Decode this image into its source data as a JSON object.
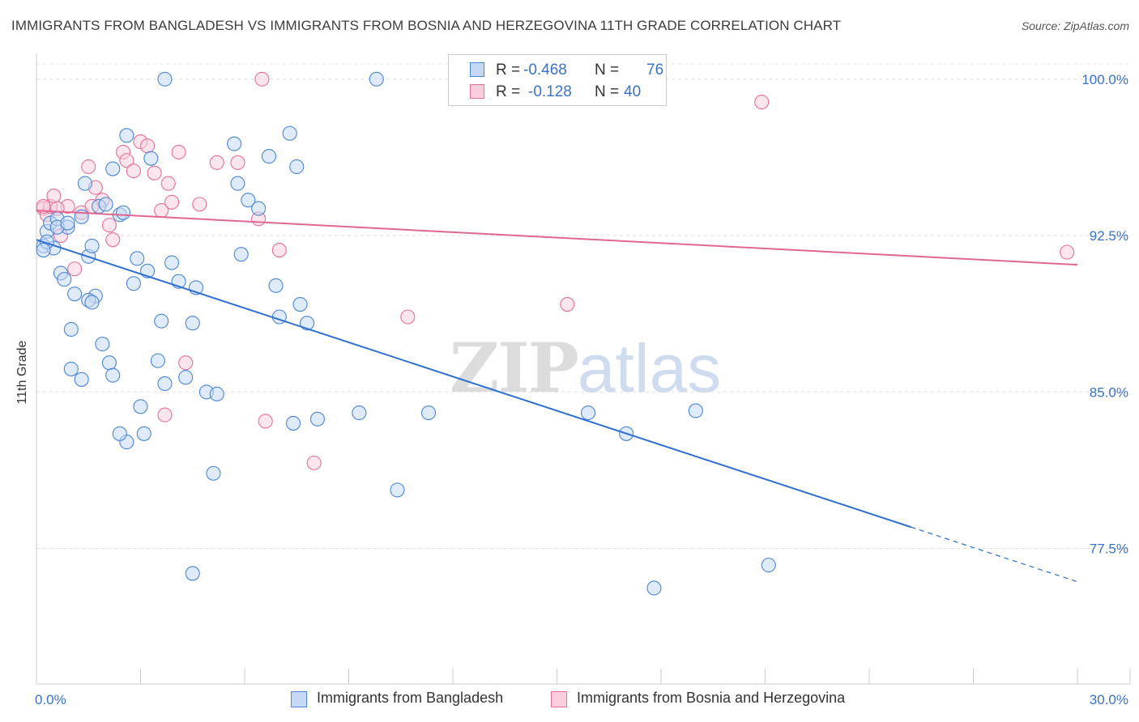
{
  "title": "IMMIGRANTS FROM BANGLADESH VS IMMIGRANTS FROM BOSNIA AND HERZEGOVINA 11TH GRADE CORRELATION CHART",
  "source": "Source: ZipAtlas.com",
  "watermark": {
    "zip": "ZIP",
    "atlas": "atlas"
  },
  "legend_top": {
    "rows": [
      {
        "r_label": "R =",
        "r_value": "-0.468",
        "n_label": "N =",
        "n_value": "76"
      },
      {
        "r_label": "R =",
        "r_value": "-0.128",
        "n_label": "N =",
        "n_value": "40"
      }
    ]
  },
  "chart_data": {
    "type": "scatter",
    "title": "IMMIGRANTS FROM BANGLADESH VS IMMIGRANTS FROM BOSNIA AND HERZEGOVINA 11TH GRADE CORRELATION CHART",
    "xlabel": "",
    "ylabel": "11th Grade",
    "xlim": [
      0,
      30
    ],
    "ylim": [
      71,
      101
    ],
    "x_tick_labels": [
      "0.0%",
      "30.0%"
    ],
    "y_tick_labels": [
      "100.0%",
      "92.5%",
      "85.0%",
      "77.5%"
    ],
    "y_ticks": [
      100,
      92.5,
      85,
      77.5
    ],
    "colors": {
      "bangladesh": "#4a86d8",
      "bosnia": "#e6709a",
      "bangladesh_fill": "#c5d9f5",
      "bosnia_fill": "#f9cfdd"
    },
    "series": [
      {
        "name": "Immigrants from Bangladesh",
        "r": -0.468,
        "n": 76,
        "trend": {
          "x0": 0,
          "y0": 92.3,
          "x1": 30,
          "y1": 75.9,
          "solid_until_x": 25.2
        },
        "points": [
          [
            0.2,
            92.0
          ],
          [
            0.3,
            92.7
          ],
          [
            0.4,
            93.1
          ],
          [
            0.5,
            91.9
          ],
          [
            0.6,
            93.3
          ],
          [
            0.3,
            92.2
          ],
          [
            0.2,
            91.8
          ],
          [
            0.7,
            90.7
          ],
          [
            0.8,
            90.4
          ],
          [
            0.9,
            92.9
          ],
          [
            1.0,
            88.0
          ],
          [
            1.1,
            89.7
          ],
          [
            1.0,
            86.1
          ],
          [
            1.3,
            93.4
          ],
          [
            1.4,
            95.0
          ],
          [
            1.5,
            91.5
          ],
          [
            1.6,
            92.0
          ],
          [
            1.7,
            89.6
          ],
          [
            1.8,
            93.9
          ],
          [
            1.5,
            89.4
          ],
          [
            1.9,
            87.3
          ],
          [
            2.0,
            94.0
          ],
          [
            2.1,
            86.4
          ],
          [
            2.2,
            95.7
          ],
          [
            2.4,
            93.5
          ],
          [
            2.5,
            93.6
          ],
          [
            2.6,
            97.3
          ],
          [
            2.8,
            90.2
          ],
          [
            2.9,
            91.4
          ],
          [
            3.0,
            84.3
          ],
          [
            3.1,
            83.0
          ],
          [
            3.2,
            90.8
          ],
          [
            3.3,
            96.2
          ],
          [
            3.5,
            86.5
          ],
          [
            3.6,
            88.4
          ],
          [
            3.7,
            85.4
          ],
          [
            3.9,
            91.2
          ],
          [
            4.1,
            90.3
          ],
          [
            4.3,
            85.7
          ],
          [
            4.5,
            88.3
          ],
          [
            4.6,
            90.0
          ],
          [
            4.9,
            85.0
          ],
          [
            5.1,
            81.1
          ],
          [
            5.7,
            96.9
          ],
          [
            5.8,
            95.0
          ],
          [
            5.9,
            91.6
          ],
          [
            6.1,
            94.2
          ],
          [
            6.4,
            93.8
          ],
          [
            6.7,
            96.3
          ],
          [
            6.9,
            90.1
          ],
          [
            7.0,
            88.6
          ],
          [
            7.3,
            97.4
          ],
          [
            7.5,
            95.8
          ],
          [
            7.6,
            89.2
          ],
          [
            7.8,
            88.3
          ],
          [
            8.1,
            83.7
          ],
          [
            9.3,
            84.0
          ],
          [
            10.4,
            80.3
          ],
          [
            11.3,
            84.0
          ],
          [
            15.9,
            84.0
          ],
          [
            17.0,
            83.0
          ],
          [
            19.0,
            84.1
          ],
          [
            4.5,
            76.3
          ],
          [
            17.8,
            75.6
          ],
          [
            21.1,
            76.7
          ],
          [
            3.7,
            100.0
          ],
          [
            9.8,
            100.0
          ],
          [
            7.4,
            83.5
          ],
          [
            2.6,
            82.6
          ],
          [
            2.4,
            83.0
          ],
          [
            1.3,
            85.6
          ],
          [
            0.6,
            92.9
          ],
          [
            0.9,
            93.1
          ],
          [
            1.6,
            89.3
          ],
          [
            2.2,
            85.8
          ],
          [
            5.2,
            84.9
          ]
        ]
      },
      {
        "name": "Immigrants from Bosnia and Herzegovina",
        "r": -0.128,
        "n": 40,
        "trend": {
          "x0": 0,
          "y0": 93.7,
          "x1": 30,
          "y1": 91.1
        },
        "points": [
          [
            0.2,
            93.8
          ],
          [
            0.3,
            93.5
          ],
          [
            0.4,
            93.9
          ],
          [
            0.5,
            94.4
          ],
          [
            0.7,
            92.5
          ],
          [
            0.9,
            93.9
          ],
          [
            1.1,
            90.9
          ],
          [
            1.3,
            93.6
          ],
          [
            1.5,
            95.8
          ],
          [
            1.7,
            94.8
          ],
          [
            1.9,
            94.2
          ],
          [
            2.1,
            93.0
          ],
          [
            2.2,
            92.3
          ],
          [
            2.5,
            96.5
          ],
          [
            2.6,
            96.1
          ],
          [
            2.8,
            95.6
          ],
          [
            3.0,
            97.0
          ],
          [
            3.2,
            96.8
          ],
          [
            3.4,
            95.5
          ],
          [
            3.6,
            93.7
          ],
          [
            3.8,
            95.0
          ],
          [
            4.1,
            96.5
          ],
          [
            4.3,
            86.4
          ],
          [
            4.7,
            94.0
          ],
          [
            5.2,
            96.0
          ],
          [
            5.8,
            96.0
          ],
          [
            6.4,
            93.3
          ],
          [
            6.6,
            83.6
          ],
          [
            7.0,
            91.8
          ],
          [
            8.0,
            81.6
          ],
          [
            10.7,
            88.6
          ],
          [
            15.3,
            89.2
          ],
          [
            20.9,
            98.9
          ],
          [
            29.7,
            91.7
          ],
          [
            6.5,
            100.0
          ],
          [
            3.7,
            83.9
          ],
          [
            1.6,
            93.9
          ],
          [
            0.6,
            93.8
          ],
          [
            0.2,
            93.9
          ],
          [
            3.9,
            94.1
          ]
        ]
      }
    ]
  },
  "legend_bottom": {
    "items": [
      {
        "label": "Immigrants from Bangladesh"
      },
      {
        "label": "Immigrants from Bosnia and Herzegovina"
      }
    ]
  }
}
